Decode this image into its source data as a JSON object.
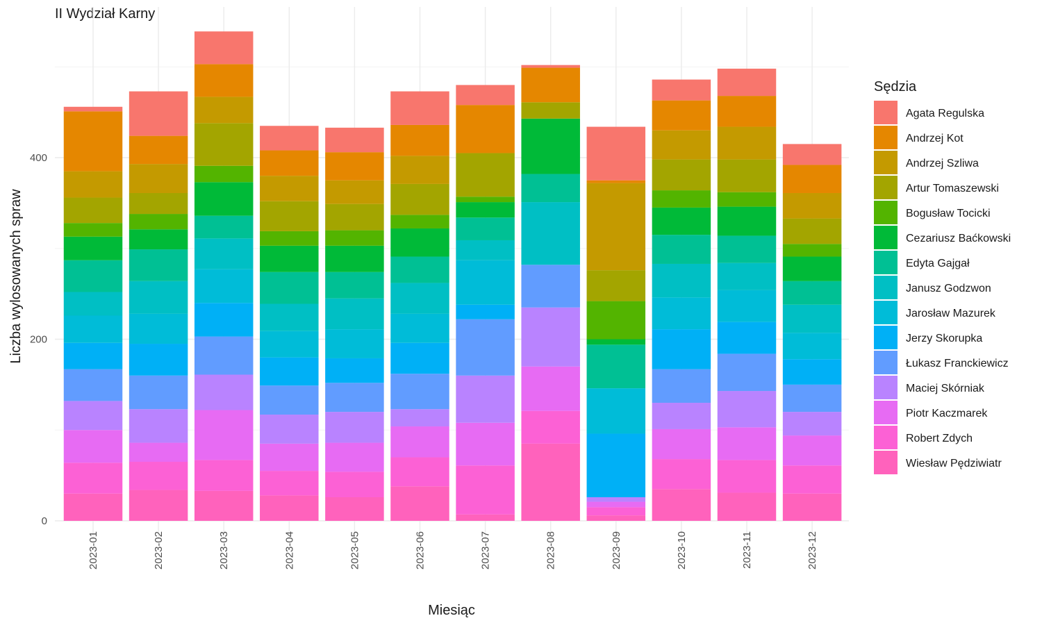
{
  "chart_data": {
    "type": "bar",
    "stacked": true,
    "title": "II Wydział Karny",
    "xlabel": "Miesiąc",
    "ylabel": "Liczba wylosowanych spraw",
    "ylim": [
      0,
      560
    ],
    "yticks": [
      0,
      200,
      400
    ],
    "legend_title": "Sędzia",
    "legend_position": "right",
    "grid": true,
    "categories": [
      "2023-01",
      "2023-02",
      "2023-03",
      "2023-04",
      "2023-05",
      "2023-06",
      "2023-07",
      "2023-08",
      "2023-09",
      "2023-10",
      "2023-11",
      "2023-12"
    ],
    "series": [
      {
        "name": "Wiesław Pędziwiatr",
        "color": "#FF62BC",
        "values": [
          30,
          34,
          33,
          28,
          26,
          38,
          7,
          85,
          6,
          35,
          31,
          30
        ]
      },
      {
        "name": "Robert Zdych",
        "color": "#FC61D5",
        "values": [
          34,
          31,
          34,
          27,
          28,
          32,
          54,
          36,
          9,
          33,
          36,
          31
        ]
      },
      {
        "name": "Piotr Kaczmarek",
        "color": "#E76BF3",
        "values": [
          36,
          21,
          55,
          30,
          32,
          34,
          47,
          49,
          6,
          33,
          36,
          33
        ]
      },
      {
        "name": "Maciej Skórniak",
        "color": "#B983FF",
        "values": [
          32,
          37,
          39,
          32,
          34,
          19,
          52,
          65,
          5,
          29,
          40,
          26
        ]
      },
      {
        "name": "Łukasz Franckiewicz",
        "color": "#619CFF",
        "values": [
          35,
          37,
          42,
          32,
          32,
          39,
          62,
          47,
          0,
          37,
          41,
          30
        ]
      },
      {
        "name": "Jerzy Skorupka",
        "color": "#00B0F6",
        "values": [
          29,
          35,
          37,
          31,
          27,
          34,
          16,
          0,
          70,
          44,
          35,
          28
        ]
      },
      {
        "name": "Jarosław Mazurek",
        "color": "#00BCD8",
        "values": [
          30,
          33,
          37,
          29,
          32,
          32,
          49,
          0,
          50,
          35,
          35,
          29
        ]
      },
      {
        "name": "Janusz Godzwon",
        "color": "#00BFC4",
        "values": [
          26,
          36,
          34,
          30,
          34,
          34,
          22,
          69,
          0,
          37,
          30,
          31
        ]
      },
      {
        "name": "Edyta Gajgał",
        "color": "#00C094",
        "values": [
          35,
          35,
          25,
          35,
          29,
          29,
          25,
          31,
          48,
          32,
          30,
          26
        ]
      },
      {
        "name": "Cezariusz Baćkowski",
        "color": "#00BA38",
        "values": [
          26,
          22,
          37,
          29,
          29,
          31,
          17,
          61,
          6,
          30,
          32,
          27
        ]
      },
      {
        "name": "Bogusław Tocicki",
        "color": "#53B400",
        "values": [
          15,
          17,
          18,
          16,
          17,
          15,
          6,
          0,
          42,
          19,
          16,
          14
        ]
      },
      {
        "name": "Artur Tomaszewski",
        "color": "#A3A500",
        "values": [
          28,
          23,
          47,
          33,
          29,
          34,
          48,
          18,
          34,
          34,
          36,
          28
        ]
      },
      {
        "name": "Andrzej Szliwa",
        "color": "#C49A00",
        "values": [
          29,
          32,
          29,
          28,
          26,
          31,
          0,
          0,
          96,
          32,
          36,
          28
        ]
      },
      {
        "name": "Andrzej Kot",
        "color": "#E58700",
        "values": [
          66,
          31,
          36,
          28,
          31,
          34,
          53,
          38,
          3,
          33,
          34,
          31
        ]
      },
      {
        "name": "Agata Regulska",
        "color": "#F8766D",
        "values": [
          5,
          49,
          36,
          27,
          27,
          37,
          22,
          3,
          59,
          23,
          30,
          23
        ]
      }
    ]
  }
}
